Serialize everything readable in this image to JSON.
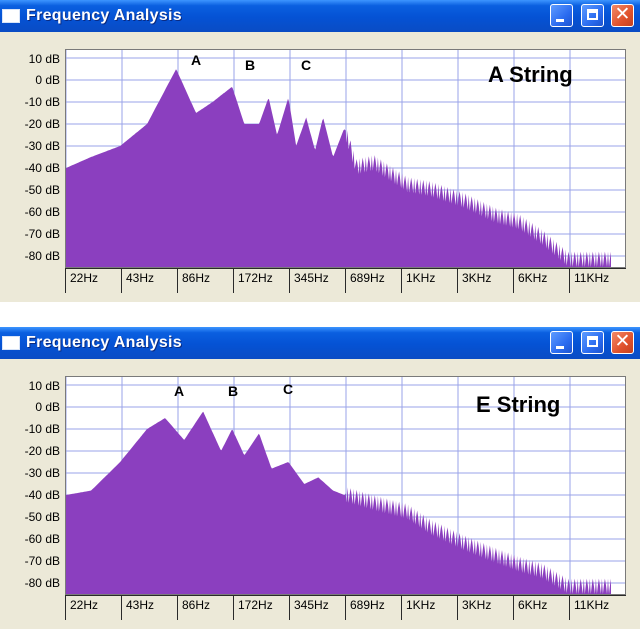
{
  "windows": [
    {
      "title": "Frequency Analysis",
      "string_label": "A String",
      "peaks": [
        "A",
        "B",
        "C"
      ],
      "y_labels": [
        "10 dB",
        "0 dB",
        "-10 dB",
        "-20 dB",
        "-30 dB",
        "-40 dB",
        "-50 dB",
        "-60 dB",
        "-70 dB",
        "-80 dB"
      ],
      "x_labels": [
        "22Hz",
        "43Hz",
        "86Hz",
        "172Hz",
        "345Hz",
        "689Hz",
        "1KHz",
        "3KHz",
        "6KHz",
        "11KHz"
      ],
      "buttons": {
        "minimize": "minimize-icon",
        "maximize": "maximize-icon",
        "close": "close-icon"
      }
    },
    {
      "title": "Frequency Analysis",
      "string_label": "E String",
      "peaks": [
        "A",
        "B",
        "C"
      ],
      "y_labels": [
        "10 dB",
        "0 dB",
        "-10 dB",
        "-20 dB",
        "-30 dB",
        "-40 dB",
        "-50 dB",
        "-60 dB",
        "-70 dB",
        "-80 dB"
      ],
      "x_labels": [
        "22Hz",
        "43Hz",
        "86Hz",
        "172Hz",
        "345Hz",
        "689Hz",
        "1KHz",
        "3KHz",
        "6KHz",
        "11KHz"
      ],
      "buttons": {
        "minimize": "minimize-icon",
        "maximize": "maximize-icon",
        "close": "close-icon"
      }
    }
  ],
  "chart_data": [
    {
      "type": "area",
      "title": "A String",
      "x_scale": "log",
      "x_ticks": [
        "22Hz",
        "43Hz",
        "86Hz",
        "172Hz",
        "345Hz",
        "689Hz",
        "1KHz",
        "3KHz",
        "6KHz",
        "11KHz"
      ],
      "ylim": [
        -85,
        12
      ],
      "y_unit": "dB",
      "grid": true,
      "color": "#8b3fbf",
      "annotations": [
        "A",
        "B",
        "C"
      ],
      "spectrum": [
        [
          22,
          -40
        ],
        [
          30,
          -35
        ],
        [
          43,
          -30
        ],
        [
          60,
          -20
        ],
        [
          86,
          5
        ],
        [
          110,
          -15
        ],
        [
          135,
          -10
        ],
        [
          172,
          -3
        ],
        [
          200,
          -20
        ],
        [
          240,
          -20
        ],
        [
          270,
          -8
        ],
        [
          300,
          -25
        ],
        [
          345,
          -8
        ],
        [
          380,
          -30
        ],
        [
          430,
          -17
        ],
        [
          480,
          -32
        ],
        [
          530,
          -17
        ],
        [
          600,
          -35
        ],
        [
          689,
          -22
        ],
        [
          800,
          -40
        ],
        [
          1000,
          -38
        ],
        [
          1500,
          -48
        ],
        [
          2000,
          -50
        ],
        [
          3000,
          -55
        ],
        [
          4500,
          -62
        ],
        [
          6000,
          -65
        ],
        [
          8000,
          -72
        ],
        [
          11000,
          -82
        ]
      ]
    },
    {
      "type": "area",
      "title": "E String",
      "x_scale": "log",
      "x_ticks": [
        "22Hz",
        "43Hz",
        "86Hz",
        "172Hz",
        "345Hz",
        "689Hz",
        "1KHz",
        "3KHz",
        "6KHz",
        "11KHz"
      ],
      "ylim": [
        -85,
        12
      ],
      "y_unit": "dB",
      "grid": true,
      "color": "#8b3fbf",
      "annotations": [
        "A",
        "B",
        "C"
      ],
      "spectrum": [
        [
          22,
          -40
        ],
        [
          30,
          -38
        ],
        [
          43,
          -25
        ],
        [
          60,
          -10
        ],
        [
          75,
          -5
        ],
        [
          95,
          -15
        ],
        [
          120,
          -2
        ],
        [
          150,
          -20
        ],
        [
          172,
          -10
        ],
        [
          200,
          -22
        ],
        [
          240,
          -12
        ],
        [
          280,
          -28
        ],
        [
          345,
          -25
        ],
        [
          420,
          -35
        ],
        [
          500,
          -32
        ],
        [
          600,
          -38
        ],
        [
          689,
          -40
        ],
        [
          1000,
          -44
        ],
        [
          1500,
          -48
        ],
        [
          2000,
          -55
        ],
        [
          3000,
          -62
        ],
        [
          4500,
          -68
        ],
        [
          6000,
          -72
        ],
        [
          8000,
          -75
        ],
        [
          11000,
          -82
        ]
      ]
    }
  ]
}
